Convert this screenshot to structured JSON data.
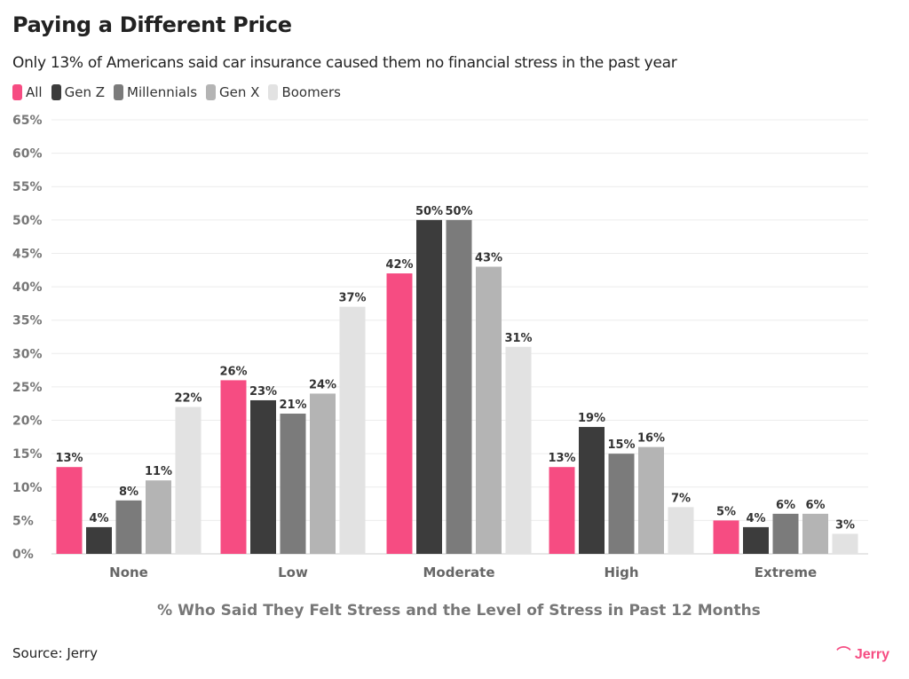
{
  "title": "Paying a Different Price",
  "subtitle": "Only 13% of Americans said car insurance caused them no financial stress in the past year",
  "source": "Source: Jerry",
  "logo_text": "Jerry",
  "chart_data": {
    "type": "bar",
    "title": "Paying a Different Price",
    "subtitle": "Only 13% of Americans said car insurance caused them no financial stress in the past year",
    "xlabel": "% Who Said They Felt Stress and the Level of Stress in Past 12 Months",
    "ylabel": "",
    "ylim": [
      0,
      65
    ],
    "y_ticks": [
      "0%",
      "5%",
      "10%",
      "15%",
      "20%",
      "25%",
      "30%",
      "35%",
      "40%",
      "45%",
      "50%",
      "55%",
      "60%",
      "65%"
    ],
    "grid": true,
    "legend_position": "top-left",
    "categories": [
      "None",
      "Low",
      "Moderate",
      "High",
      "Extreme"
    ],
    "series": [
      {
        "name": "All",
        "color": "#f64c82",
        "values": [
          13,
          26,
          42,
          13,
          5
        ]
      },
      {
        "name": "Gen Z",
        "color": "#3c3c3c",
        "values": [
          4,
          23,
          50,
          19,
          4
        ]
      },
      {
        "name": "Millennials",
        "color": "#7b7b7b",
        "values": [
          8,
          21,
          50,
          15,
          6
        ]
      },
      {
        "name": "Gen X",
        "color": "#b4b4b4",
        "values": [
          11,
          24,
          43,
          16,
          6
        ]
      },
      {
        "name": "Boomers",
        "color": "#e2e2e2",
        "values": [
          22,
          37,
          31,
          7,
          3
        ]
      }
    ]
  }
}
